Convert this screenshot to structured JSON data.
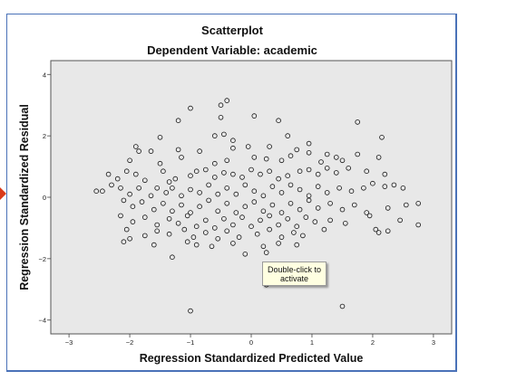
{
  "colors": {
    "plot_background": "#e8e8e8",
    "frame_border": "#4a72b8",
    "marker_stroke": "#111111",
    "selection_marker": "#d93a1a",
    "tooltip_background": "#ffffe1"
  },
  "tooltip": {
    "line1": "Double-click to",
    "line2": "activate"
  },
  "chart_data": {
    "type": "scatter",
    "title": "Scatterplot",
    "subtitle": "Dependent Variable: academic",
    "xlabel": "Regression Standardized Predicted Value",
    "ylabel": "Regression Standardized Residual",
    "xlim": [
      -3.3,
      3.3
    ],
    "ylim": [
      -4.45,
      4.45
    ],
    "xticks": [
      -3,
      -2,
      -1,
      0,
      1,
      2,
      3
    ],
    "yticks": [
      -4,
      -2,
      0,
      2,
      4
    ],
    "grid": false,
    "legend": "none",
    "marker": "open-circle",
    "series": [
      {
        "points": [
          [
            -1.0,
            2.9
          ],
          [
            -0.4,
            3.15
          ],
          [
            -0.5,
            3.0
          ],
          [
            -0.5,
            2.6
          ],
          [
            0.05,
            2.65
          ],
          [
            0.45,
            2.5
          ],
          [
            -1.2,
            2.5
          ],
          [
            1.75,
            2.45
          ],
          [
            2.15,
            1.95
          ],
          [
            -1.5,
            1.95
          ],
          [
            -0.6,
            2.0
          ],
          [
            -0.45,
            2.05
          ],
          [
            0.6,
            2.0
          ],
          [
            -0.3,
            1.85
          ],
          [
            -1.9,
            1.65
          ],
          [
            -1.85,
            1.5
          ],
          [
            -1.65,
            1.5
          ],
          [
            -1.2,
            1.55
          ],
          [
            -0.85,
            1.5
          ],
          [
            -0.3,
            1.6
          ],
          [
            -0.05,
            1.65
          ],
          [
            0.3,
            1.65
          ],
          [
            0.75,
            1.55
          ],
          [
            0.95,
            1.75
          ],
          [
            0.95,
            1.45
          ],
          [
            1.25,
            1.4
          ],
          [
            1.4,
            1.3
          ],
          [
            1.75,
            1.4
          ],
          [
            -2.0,
            1.2
          ],
          [
            -1.5,
            1.1
          ],
          [
            -1.15,
            1.3
          ],
          [
            -0.6,
            1.1
          ],
          [
            -0.4,
            1.2
          ],
          [
            0.05,
            1.3
          ],
          [
            0.25,
            1.25
          ],
          [
            0.5,
            1.2
          ],
          [
            0.65,
            1.35
          ],
          [
            1.15,
            1.15
          ],
          [
            1.5,
            1.2
          ],
          [
            2.1,
            1.3
          ],
          [
            -2.35,
            0.75
          ],
          [
            -2.2,
            0.6
          ],
          [
            -2.05,
            0.85
          ],
          [
            -1.9,
            0.75
          ],
          [
            -1.75,
            0.55
          ],
          [
            -1.45,
            0.85
          ],
          [
            -1.35,
            0.5
          ],
          [
            -1.25,
            0.6
          ],
          [
            -1.0,
            0.7
          ],
          [
            -0.9,
            0.85
          ],
          [
            -0.75,
            0.9
          ],
          [
            -0.6,
            0.65
          ],
          [
            -0.45,
            0.8
          ],
          [
            -0.3,
            0.75
          ],
          [
            -0.15,
            0.65
          ],
          [
            0.0,
            0.9
          ],
          [
            0.15,
            0.75
          ],
          [
            0.3,
            0.85
          ],
          [
            0.45,
            0.6
          ],
          [
            0.6,
            0.7
          ],
          [
            0.8,
            0.85
          ],
          [
            0.95,
            0.9
          ],
          [
            1.1,
            0.75
          ],
          [
            1.25,
            0.95
          ],
          [
            1.4,
            0.8
          ],
          [
            1.6,
            0.95
          ],
          [
            1.9,
            0.85
          ],
          [
            2.2,
            0.75
          ],
          [
            -2.45,
            0.2
          ],
          [
            -2.3,
            0.4
          ],
          [
            -2.15,
            0.3
          ],
          [
            -2.0,
            0.1
          ],
          [
            -1.85,
            0.3
          ],
          [
            -1.65,
            0.05
          ],
          [
            -1.55,
            0.3
          ],
          [
            -1.4,
            0.15
          ],
          [
            -1.3,
            0.3
          ],
          [
            -1.15,
            0.05
          ],
          [
            -1.0,
            0.25
          ],
          [
            -0.85,
            0.15
          ],
          [
            -0.7,
            0.4
          ],
          [
            -0.55,
            0.1
          ],
          [
            -0.4,
            0.3
          ],
          [
            -0.25,
            0.1
          ],
          [
            -0.1,
            0.4
          ],
          [
            0.05,
            0.2
          ],
          [
            0.2,
            0.05
          ],
          [
            0.35,
            0.35
          ],
          [
            0.5,
            0.15
          ],
          [
            0.65,
            0.4
          ],
          [
            0.8,
            0.25
          ],
          [
            0.95,
            0.05
          ],
          [
            1.1,
            0.35
          ],
          [
            1.25,
            0.15
          ],
          [
            1.45,
            0.3
          ],
          [
            1.65,
            0.2
          ],
          [
            1.85,
            0.3
          ],
          [
            2.0,
            0.45
          ],
          [
            2.2,
            0.35
          ],
          [
            2.35,
            0.4
          ],
          [
            2.5,
            0.3
          ],
          [
            -2.55,
            0.2
          ],
          [
            -2.1,
            -0.1
          ],
          [
            -1.95,
            -0.3
          ],
          [
            -1.8,
            -0.15
          ],
          [
            -1.6,
            -0.4
          ],
          [
            -1.45,
            -0.2
          ],
          [
            -1.3,
            -0.45
          ],
          [
            -1.15,
            -0.25
          ],
          [
            -1.0,
            -0.5
          ],
          [
            -0.85,
            -0.3
          ],
          [
            -0.7,
            -0.1
          ],
          [
            -0.55,
            -0.45
          ],
          [
            -0.4,
            -0.2
          ],
          [
            -0.25,
            -0.5
          ],
          [
            -0.1,
            -0.3
          ],
          [
            0.05,
            -0.15
          ],
          [
            0.2,
            -0.45
          ],
          [
            0.35,
            -0.25
          ],
          [
            0.5,
            -0.5
          ],
          [
            0.65,
            -0.2
          ],
          [
            0.8,
            -0.4
          ],
          [
            0.95,
            -0.1
          ],
          [
            1.1,
            -0.35
          ],
          [
            1.3,
            -0.2
          ],
          [
            1.5,
            -0.4
          ],
          [
            1.7,
            -0.25
          ],
          [
            1.9,
            -0.5
          ],
          [
            2.25,
            -0.35
          ],
          [
            2.55,
            -0.25
          ],
          [
            2.75,
            -0.2
          ],
          [
            -2.15,
            -0.6
          ],
          [
            -1.95,
            -0.8
          ],
          [
            -1.75,
            -0.65
          ],
          [
            -1.55,
            -0.9
          ],
          [
            -1.35,
            -0.7
          ],
          [
            -1.2,
            -0.85
          ],
          [
            -1.05,
            -0.6
          ],
          [
            -0.9,
            -0.95
          ],
          [
            -0.75,
            -0.75
          ],
          [
            -0.6,
            -1.0
          ],
          [
            -0.45,
            -0.7
          ],
          [
            -0.3,
            -0.9
          ],
          [
            -0.15,
            -0.65
          ],
          [
            0.0,
            -0.95
          ],
          [
            0.15,
            -0.75
          ],
          [
            0.3,
            -0.6
          ],
          [
            0.45,
            -0.9
          ],
          [
            0.6,
            -0.7
          ],
          [
            0.75,
            -0.95
          ],
          [
            0.9,
            -0.65
          ],
          [
            1.05,
            -0.8
          ],
          [
            1.3,
            -0.75
          ],
          [
            1.55,
            -0.85
          ],
          [
            1.95,
            -0.6
          ],
          [
            2.45,
            -0.75
          ],
          [
            2.75,
            -0.9
          ],
          [
            -2.05,
            -1.05
          ],
          [
            -1.75,
            -1.25
          ],
          [
            -1.55,
            -1.1
          ],
          [
            -1.35,
            -1.2
          ],
          [
            -1.1,
            -1.05
          ],
          [
            -0.95,
            -1.3
          ],
          [
            -0.75,
            -1.15
          ],
          [
            -0.55,
            -1.35
          ],
          [
            -0.4,
            -1.1
          ],
          [
            -0.2,
            -1.3
          ],
          [
            0.1,
            -1.2
          ],
          [
            0.3,
            -1.05
          ],
          [
            0.5,
            -1.3
          ],
          [
            0.7,
            -1.15
          ],
          [
            0.85,
            -1.25
          ],
          [
            1.2,
            -1.05
          ],
          [
            2.05,
            -1.05
          ],
          [
            2.1,
            -1.15
          ],
          [
            2.25,
            -1.1
          ],
          [
            -2.0,
            -1.35
          ],
          [
            -2.1,
            -1.45
          ],
          [
            -1.6,
            -1.55
          ],
          [
            -1.05,
            -1.45
          ],
          [
            -0.65,
            -1.6
          ],
          [
            -0.3,
            -1.5
          ],
          [
            0.2,
            -1.6
          ],
          [
            0.45,
            -1.5
          ],
          [
            0.75,
            -1.55
          ],
          [
            -0.9,
            -1.55
          ],
          [
            -1.3,
            -1.95
          ],
          [
            -0.1,
            -1.85
          ],
          [
            0.25,
            -1.8
          ],
          [
            0.75,
            -2.2
          ],
          [
            0.25,
            -2.85
          ],
          [
            -1.0,
            -3.7
          ],
          [
            1.5,
            -3.55
          ]
        ]
      }
    ]
  }
}
